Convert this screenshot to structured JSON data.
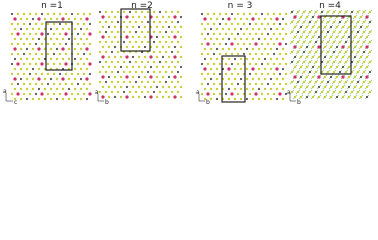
{
  "panels": [
    {
      "label": "n =1",
      "axes": [
        "a",
        "c"
      ]
    },
    {
      "label": "n =2",
      "axes": [
        "a",
        "b"
      ]
    },
    {
      "label": "n = 3",
      "axes": [
        "a",
        "b"
      ]
    },
    {
      "label": "n =4",
      "axes": [
        "a",
        "b"
      ]
    }
  ]
}
